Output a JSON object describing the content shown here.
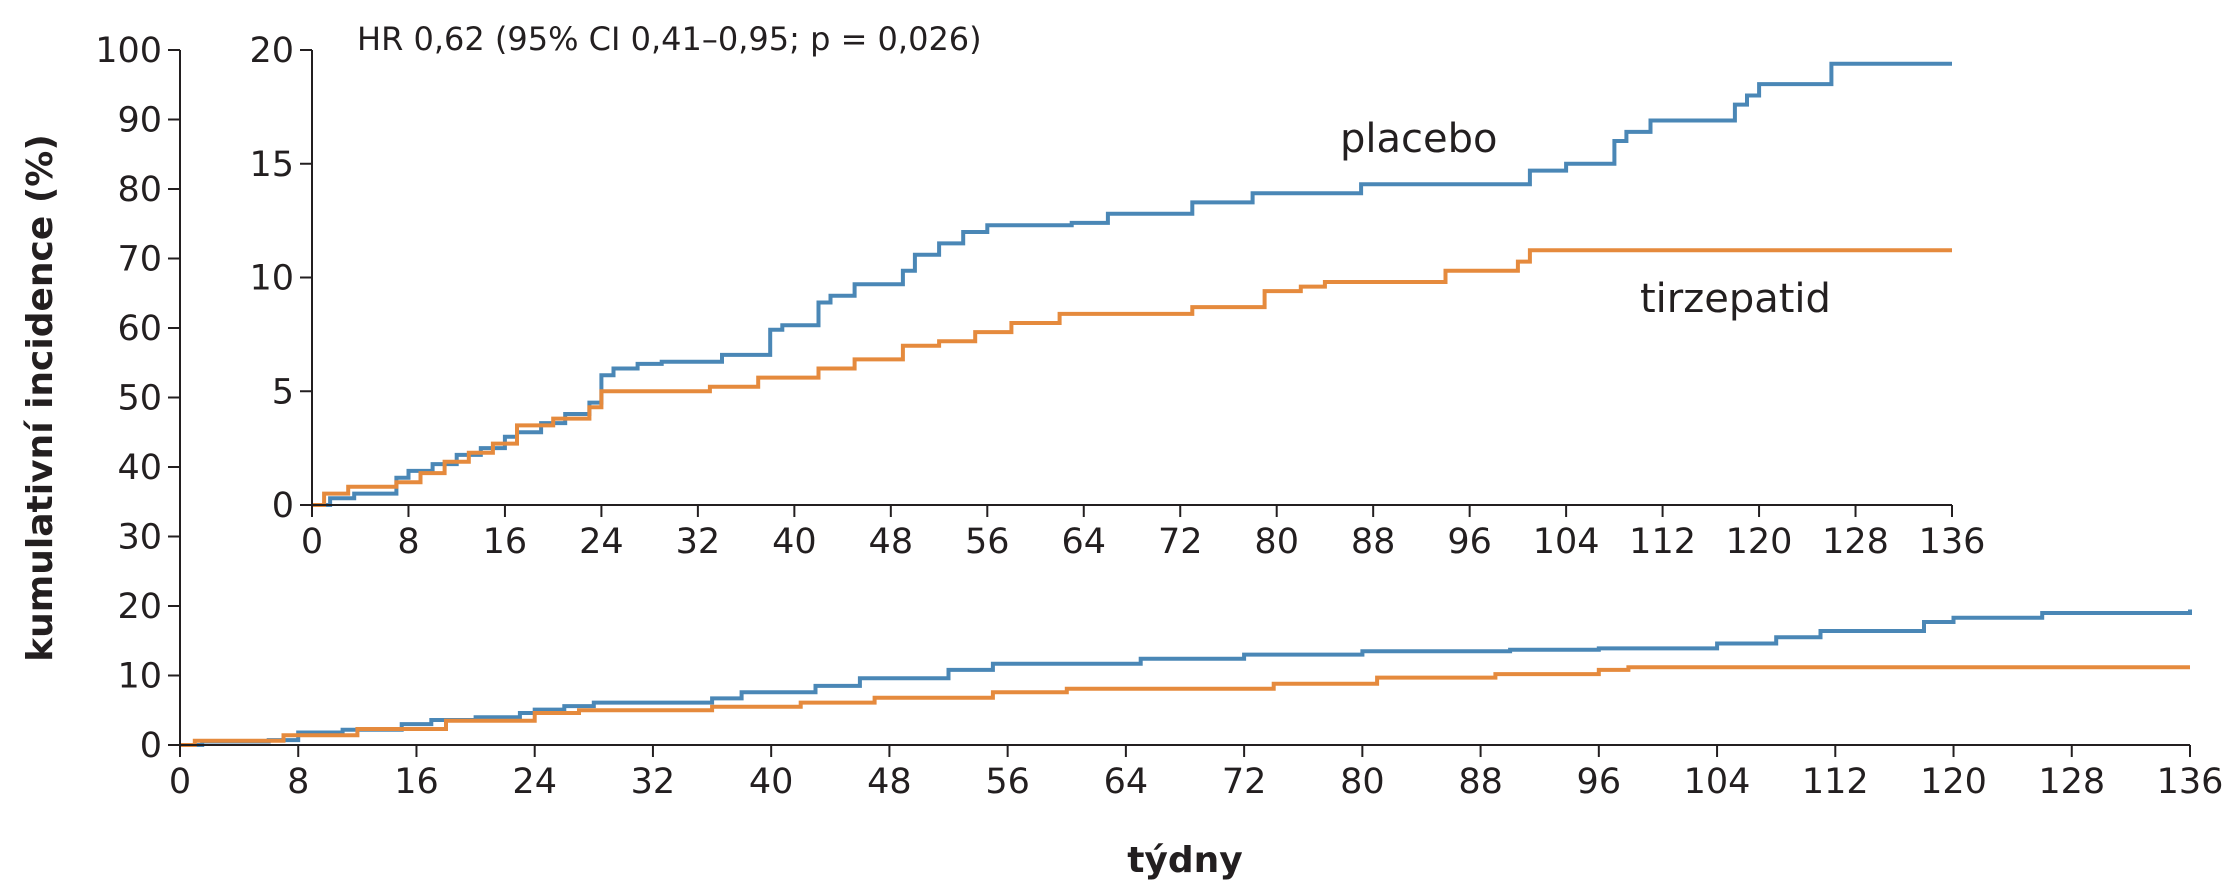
{
  "colors": {
    "placebo": "#4a87b6",
    "tirzepatid": "#e58a3d",
    "axis": "#231f20"
  },
  "chart_data": [
    {
      "type": "line",
      "step": true,
      "x": {
        "label": "týdny",
        "ticks": [
          0,
          8,
          16,
          24,
          32,
          40,
          48,
          56,
          64,
          72,
          80,
          88,
          96,
          104,
          112,
          120,
          128,
          136
        ],
        "lim": [
          0,
          136
        ]
      },
      "y": {
        "label": "kumulativní incidence (%)",
        "ticks": [
          0,
          10,
          20,
          30,
          40,
          50,
          60,
          70,
          80,
          90,
          100
        ],
        "lim": [
          0,
          100
        ]
      },
      "grid": false,
      "series": [
        {
          "name": "placebo",
          "color": "#4a87b6",
          "points": [
            [
              0,
              0
            ],
            [
              1.5,
              0.5
            ],
            [
              6,
              0.7
            ],
            [
              8,
              1.8
            ],
            [
              11,
              2.2
            ],
            [
              15,
              3.0
            ],
            [
              17,
              3.6
            ],
            [
              20,
              4.0
            ],
            [
              23,
              4.6
            ],
            [
              24,
              5.1
            ],
            [
              26,
              5.6
            ],
            [
              28,
              6.1
            ],
            [
              36,
              6.7
            ],
            [
              38,
              7.6
            ],
            [
              43,
              8.5
            ],
            [
              46,
              9.6
            ],
            [
              52,
              10.8
            ],
            [
              55,
              11.7
            ],
            [
              65,
              12.4
            ],
            [
              72,
              13.0
            ],
            [
              80,
              13.5
            ],
            [
              90,
              13.7
            ],
            [
              96,
              13.9
            ],
            [
              104,
              14.6
            ],
            [
              108,
              15.5
            ],
            [
              111,
              16.4
            ],
            [
              118,
              17.7
            ],
            [
              120,
              18.3
            ],
            [
              126,
              19.0
            ],
            [
              136,
              19.5
            ]
          ]
        },
        {
          "name": "tirzepatid",
          "color": "#e58a3d",
          "points": [
            [
              0,
              0
            ],
            [
              1,
              0.6
            ],
            [
              7,
              1.4
            ],
            [
              12,
              2.3
            ],
            [
              18,
              3.5
            ],
            [
              24,
              4.6
            ],
            [
              27,
              5.0
            ],
            [
              36,
              5.5
            ],
            [
              42,
              6.1
            ],
            [
              47,
              6.8
            ],
            [
              55,
              7.6
            ],
            [
              60,
              8.1
            ],
            [
              74,
              8.8
            ],
            [
              81,
              9.7
            ],
            [
              89,
              10.2
            ],
            [
              96,
              10.8
            ],
            [
              98,
              11.2
            ],
            [
              136,
              11.2
            ]
          ]
        }
      ]
    },
    {
      "type": "line",
      "step": true,
      "inset": true,
      "annotation": "HR 0,62 (95% CI 0,41–0,95; p = 0,026)",
      "x": {
        "ticks": [
          0,
          8,
          16,
          24,
          32,
          40,
          48,
          56,
          64,
          72,
          80,
          88,
          96,
          104,
          112,
          120,
          128,
          136
        ],
        "lim": [
          0,
          136
        ]
      },
      "y": {
        "ticks": [
          0,
          5,
          10,
          15,
          20
        ],
        "lim": [
          0,
          20
        ]
      },
      "grid": false,
      "series": [
        {
          "name": "placebo",
          "color": "#4a87b6",
          "points": [
            [
              0,
              0
            ],
            [
              1.5,
              0.3
            ],
            [
              3.5,
              0.5
            ],
            [
              6,
              0.5
            ],
            [
              7,
              1.2
            ],
            [
              8,
              1.5
            ],
            [
              10,
              1.8
            ],
            [
              12,
              2.2
            ],
            [
              14,
              2.5
            ],
            [
              16,
              3.0
            ],
            [
              17,
              3.2
            ],
            [
              19,
              3.6
            ],
            [
              21,
              4.0
            ],
            [
              23,
              4.5
            ],
            [
              24,
              5.7
            ],
            [
              25,
              6.0
            ],
            [
              27,
              6.2
            ],
            [
              29,
              6.3
            ],
            [
              34,
              6.6
            ],
            [
              38,
              7.7
            ],
            [
              39,
              7.9
            ],
            [
              42,
              8.9
            ],
            [
              43,
              9.2
            ],
            [
              45,
              9.7
            ],
            [
              49,
              10.3
            ],
            [
              50,
              11.0
            ],
            [
              52,
              11.5
            ],
            [
              54,
              12.0
            ],
            [
              56,
              12.3
            ],
            [
              63,
              12.4
            ],
            [
              66,
              12.8
            ],
            [
              73,
              13.3
            ],
            [
              78,
              13.7
            ],
            [
              87,
              14.1
            ],
            [
              95,
              14.1
            ],
            [
              101,
              14.7
            ],
            [
              104,
              15.0
            ],
            [
              108,
              16.0
            ],
            [
              109,
              16.4
            ],
            [
              111,
              16.9
            ],
            [
              118,
              17.6
            ],
            [
              119,
              18.0
            ],
            [
              120,
              18.5
            ],
            [
              126,
              19.4
            ],
            [
              136,
              19.4
            ]
          ]
        },
        {
          "name": "tirzepatid",
          "color": "#e58a3d",
          "points": [
            [
              0,
              0
            ],
            [
              1,
              0.5
            ],
            [
              3,
              0.8
            ],
            [
              6,
              0.8
            ],
            [
              7,
              1.0
            ],
            [
              9,
              1.4
            ],
            [
              11,
              1.9
            ],
            [
              13,
              2.3
            ],
            [
              15,
              2.7
            ],
            [
              17,
              3.5
            ],
            [
              20,
              3.8
            ],
            [
              23,
              4.3
            ],
            [
              24,
              5.0
            ],
            [
              33,
              5.2
            ],
            [
              37,
              5.6
            ],
            [
              42,
              6.0
            ],
            [
              45,
              6.4
            ],
            [
              49,
              7.0
            ],
            [
              52,
              7.2
            ],
            [
              55,
              7.6
            ],
            [
              58,
              8.0
            ],
            [
              62,
              8.4
            ],
            [
              73,
              8.7
            ],
            [
              79,
              9.4
            ],
            [
              82,
              9.6
            ],
            [
              84,
              9.8
            ],
            [
              94,
              10.3
            ],
            [
              100,
              10.7
            ],
            [
              101,
              11.2
            ],
            [
              136,
              11.2
            ]
          ]
        }
      ],
      "labels": {
        "placebo": "placebo",
        "tirzepatid": "tirzepatid"
      }
    }
  ]
}
